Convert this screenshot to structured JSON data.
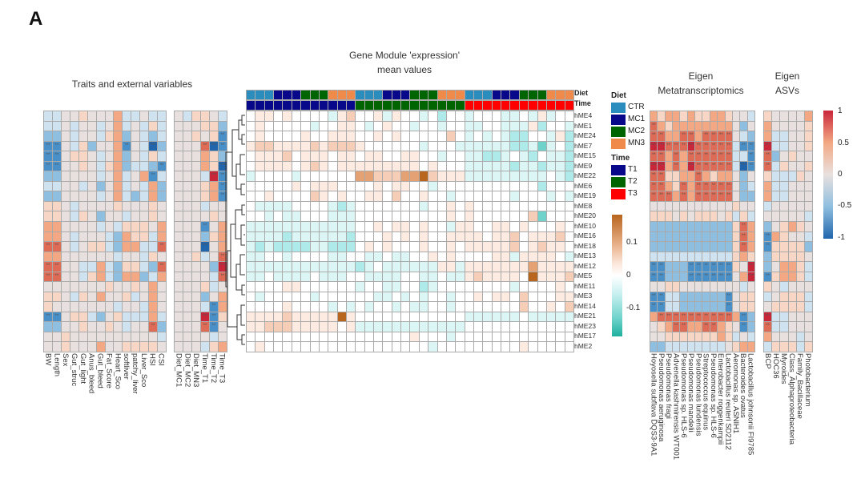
{
  "panel_label": "A",
  "titles": {
    "traits": "Traits and external variables",
    "gene_module_line1": "Gene Module 'expression'",
    "gene_module_line2": "mean values",
    "meta_line1": "Eigen",
    "meta_line2": "Metatranscriptomics",
    "asv_line1": "Eigen",
    "asv_line2": "ASVs"
  },
  "chart_data": {
    "type": "heatmap",
    "rows": [
      "hME4",
      "hME1",
      "hME24",
      "hME7",
      "hME15",
      "hME9",
      "hME22",
      "hME6",
      "hME19",
      "hME8",
      "hME20",
      "hME10",
      "hME16",
      "hME18",
      "hME13",
      "hME12",
      "hME5",
      "hME11",
      "hME3",
      "hME14",
      "hME21",
      "hME23",
      "hME17",
      "hME2"
    ],
    "encoding": "each char 0-8 is a level; value = (level-4)/4 * scale_max; 4 = 0",
    "traits": {
      "columns": [
        "BW",
        "Length",
        "Sex",
        "Gut_struc",
        "Gut_light",
        "Anus_bleed",
        "Gut_bleed",
        "Fat_Score",
        "Heart_Sco",
        "softliver",
        "patchy_liver",
        "Liver_Sco",
        "HSI",
        "CSI"
      ],
      "scale_max": 1,
      "levels": [
        "33445444633433",
        "33434434634353",
        "22434435624323",
        "11435244614302",
        "11455434624353",
        "11445435623321",
        "22444434634613",
        "33443424634362",
        "22444434632362",
        "55434444544454",
        "55435424434454",
        "66444434355546",
        "66434443265536",
        "77434553266337",
        "66444444344354",
        "77443363255327",
        "77443563266236",
        "44444445445464",
        "55435464453464",
        "54444444344364",
        "11455324533363",
        "22445445434472",
        "44544444444443",
        "44544464455554"
      ]
    },
    "design": {
      "columns": [
        "Diet_MC1",
        "Diet_MC2",
        "Diet_MN3",
        "Time_T1",
        "Time_T2",
        "Time_T3"
      ],
      "scale_max": 1,
      "levels": [
        "435543",
        "444552",
        "445451",
        "444701",
        "444652",
        "444650",
        "444381",
        "444561",
        "444561",
        "444344",
        "444454",
        "444146",
        "444256",
        "444046",
        "445347",
        "444428",
        "444437",
        "444534",
        "444246",
        "444316",
        "444815",
        "444714",
        "444434",
        "444356"
      ]
    },
    "modules": {
      "diet_annotation": [
        "CTR",
        "CTR",
        "CTR",
        "MC1",
        "MC1",
        "MC1",
        "MC2",
        "MC2",
        "MC2",
        "MN3",
        "MN3",
        "MN3",
        "CTR",
        "CTR",
        "CTR",
        "MC1",
        "MC1",
        "MC1",
        "MC2",
        "MC2",
        "MC2",
        "MN3",
        "MN3",
        "MN3",
        "CTR",
        "CTR",
        "CTR",
        "MC1",
        "MC1",
        "MC1",
        "MC2",
        "MC2",
        "MC2",
        "MN3",
        "MN3",
        "MN3"
      ],
      "time_annotation": [
        "T1",
        "T1",
        "T1",
        "T1",
        "T1",
        "T1",
        "T1",
        "T1",
        "T1",
        "T1",
        "T1",
        "T1",
        "T2",
        "T2",
        "T2",
        "T2",
        "T2",
        "T2",
        "T2",
        "T2",
        "T2",
        "T2",
        "T2",
        "T2",
        "T3",
        "T3",
        "T3",
        "T3",
        "T3",
        "T3",
        "T3",
        "T3",
        "T3",
        "T3",
        "T3",
        "T3"
      ],
      "scale_max": 0.15,
      "levels": [
        "455454444356445354434244344433435344",
        "454444434455434544344344334433352443",
        "454444544555445454444464343432244352",
        "566555565666544444434443333332231342",
        "455564555455455445544344332234324332",
        "455554565455555555545444333332332332",
        "344443444444776667786555333333333432",
        "444445455544445455443444444444442444",
        "445444465454455464454434444443444343",
        "433334444323444444434454544444444444",
        "443433444333444444444454544444461444",
        "333333333333445455454435544554544454",
        "333323333332444545454455554556455564",
        "323222233222454544454454555556456554",
        "334434444334433433445454444553555543",
        "333333333333234333333553555555575555",
        "334333343334433334433433565555485556",
        "444455444444344334423444444443444454",
        "434444434444443343434434454554644455",
        "444454444343434434334434444444644546",
        "555565555585444444444444333333433333",
        "556665555545333333333333444444444444",
        "444444444444444444544434444444444444",
        "454444444444444444443444444444544444"
      ]
    },
    "metatranscriptomics": {
      "columns": [
        "Hoyosella subflava DQS3-9A1",
        "Pseudomonas aeruginosa",
        "Pseudomonas fragi",
        "Advenella kashmirensis WT001",
        "Pseudomonas sp. HLS-6",
        "Pseudomonas mandelii",
        "Pseudomonas lundensis",
        "Streptococcus equinus",
        "Pseudomonas sp. HLS-6",
        "Enterobacter roggenkampii",
        "Lactobacillus reuteri SD2112",
        "Aeromonas sp. ASNIH1",
        "Bacteroides ovatus",
        "Lactobacillus johnsonii FI9785"
      ],
      "scale_max": 1,
      "levels": [
        "65665655665443",
        "76566666666424",
        "77667767777432",
        "88777877777311",
        "77676777777331",
        "88676877777301",
        "77556676566424",
        "77657677777423",
        "77767677777422",
        "44444444444544",
        "55545455545353",
        "22222222222576",
        "22222222222576",
        "22222222222576",
        "33333333333565",
        "11222111111548",
        "11222111111468",
        "44554444444434",
        "11332222221455",
        "11332222221455",
        "67777777777612",
        "45677667765412",
        "44555555565343",
        "22333333334566"
      ]
    },
    "asvs": {
      "columns": [
        "BCP",
        "HOC36",
        "Myroides",
        "Class_Alphaproteobacteria",
        "Family_Bacillaceae",
        "Photobacterium"
      ],
      "scale_max": 1,
      "levels": [
        "544446",
        "644445",
        "633445",
        "833445",
        "724544",
        "735445",
        "533354",
        "633444",
        "633444",
        "344444",
        "444443",
        "245654",
        "165443",
        "155552",
        "255554",
        "246653",
        "156653",
        "543444",
        "345553",
        "455553",
        "833444",
        "733444",
        "644434",
        "355535"
      ]
    },
    "significance": {
      "strong": "***",
      "medium": "**"
    }
  },
  "legend": {
    "diet_title": "Diet",
    "diet_items": [
      {
        "label": "CTR",
        "color": "#2b8cbe"
      },
      {
        "label": "MC1",
        "color": "#08088a"
      },
      {
        "label": "MC2",
        "color": "#006400"
      },
      {
        "label": "MN3",
        "color": "#f08a4b"
      }
    ],
    "time_title": "Time",
    "time_items": [
      {
        "label": "T1",
        "color": "#08088a"
      },
      {
        "label": "T2",
        "color": "#006400"
      },
      {
        "label": "T3",
        "color": "#ff0000"
      }
    ],
    "module_scale_ticks": [
      "0.1",
      "0",
      "-0.1"
    ],
    "corr_scale_ticks": [
      "1",
      "0.5",
      "0",
      "-0.5",
      "-1"
    ],
    "annotation_labels": {
      "diet": "Diet",
      "time": "Time"
    }
  },
  "colors": {
    "module_scale": [
      "#1fb09e",
      "#6fd3cc",
      "#aeeaea",
      "#dcf6f6",
      "#ffffff",
      "#fdebe2",
      "#f6cdb6",
      "#e4a274",
      "#b8651e"
    ],
    "corr_scale": [
      "#2166ac",
      "#4a90c8",
      "#8fbfe0",
      "#cfe2f0",
      "#e8e0de",
      "#f7d6c6",
      "#f3a883",
      "#de6b55",
      "#c9263a"
    ]
  }
}
